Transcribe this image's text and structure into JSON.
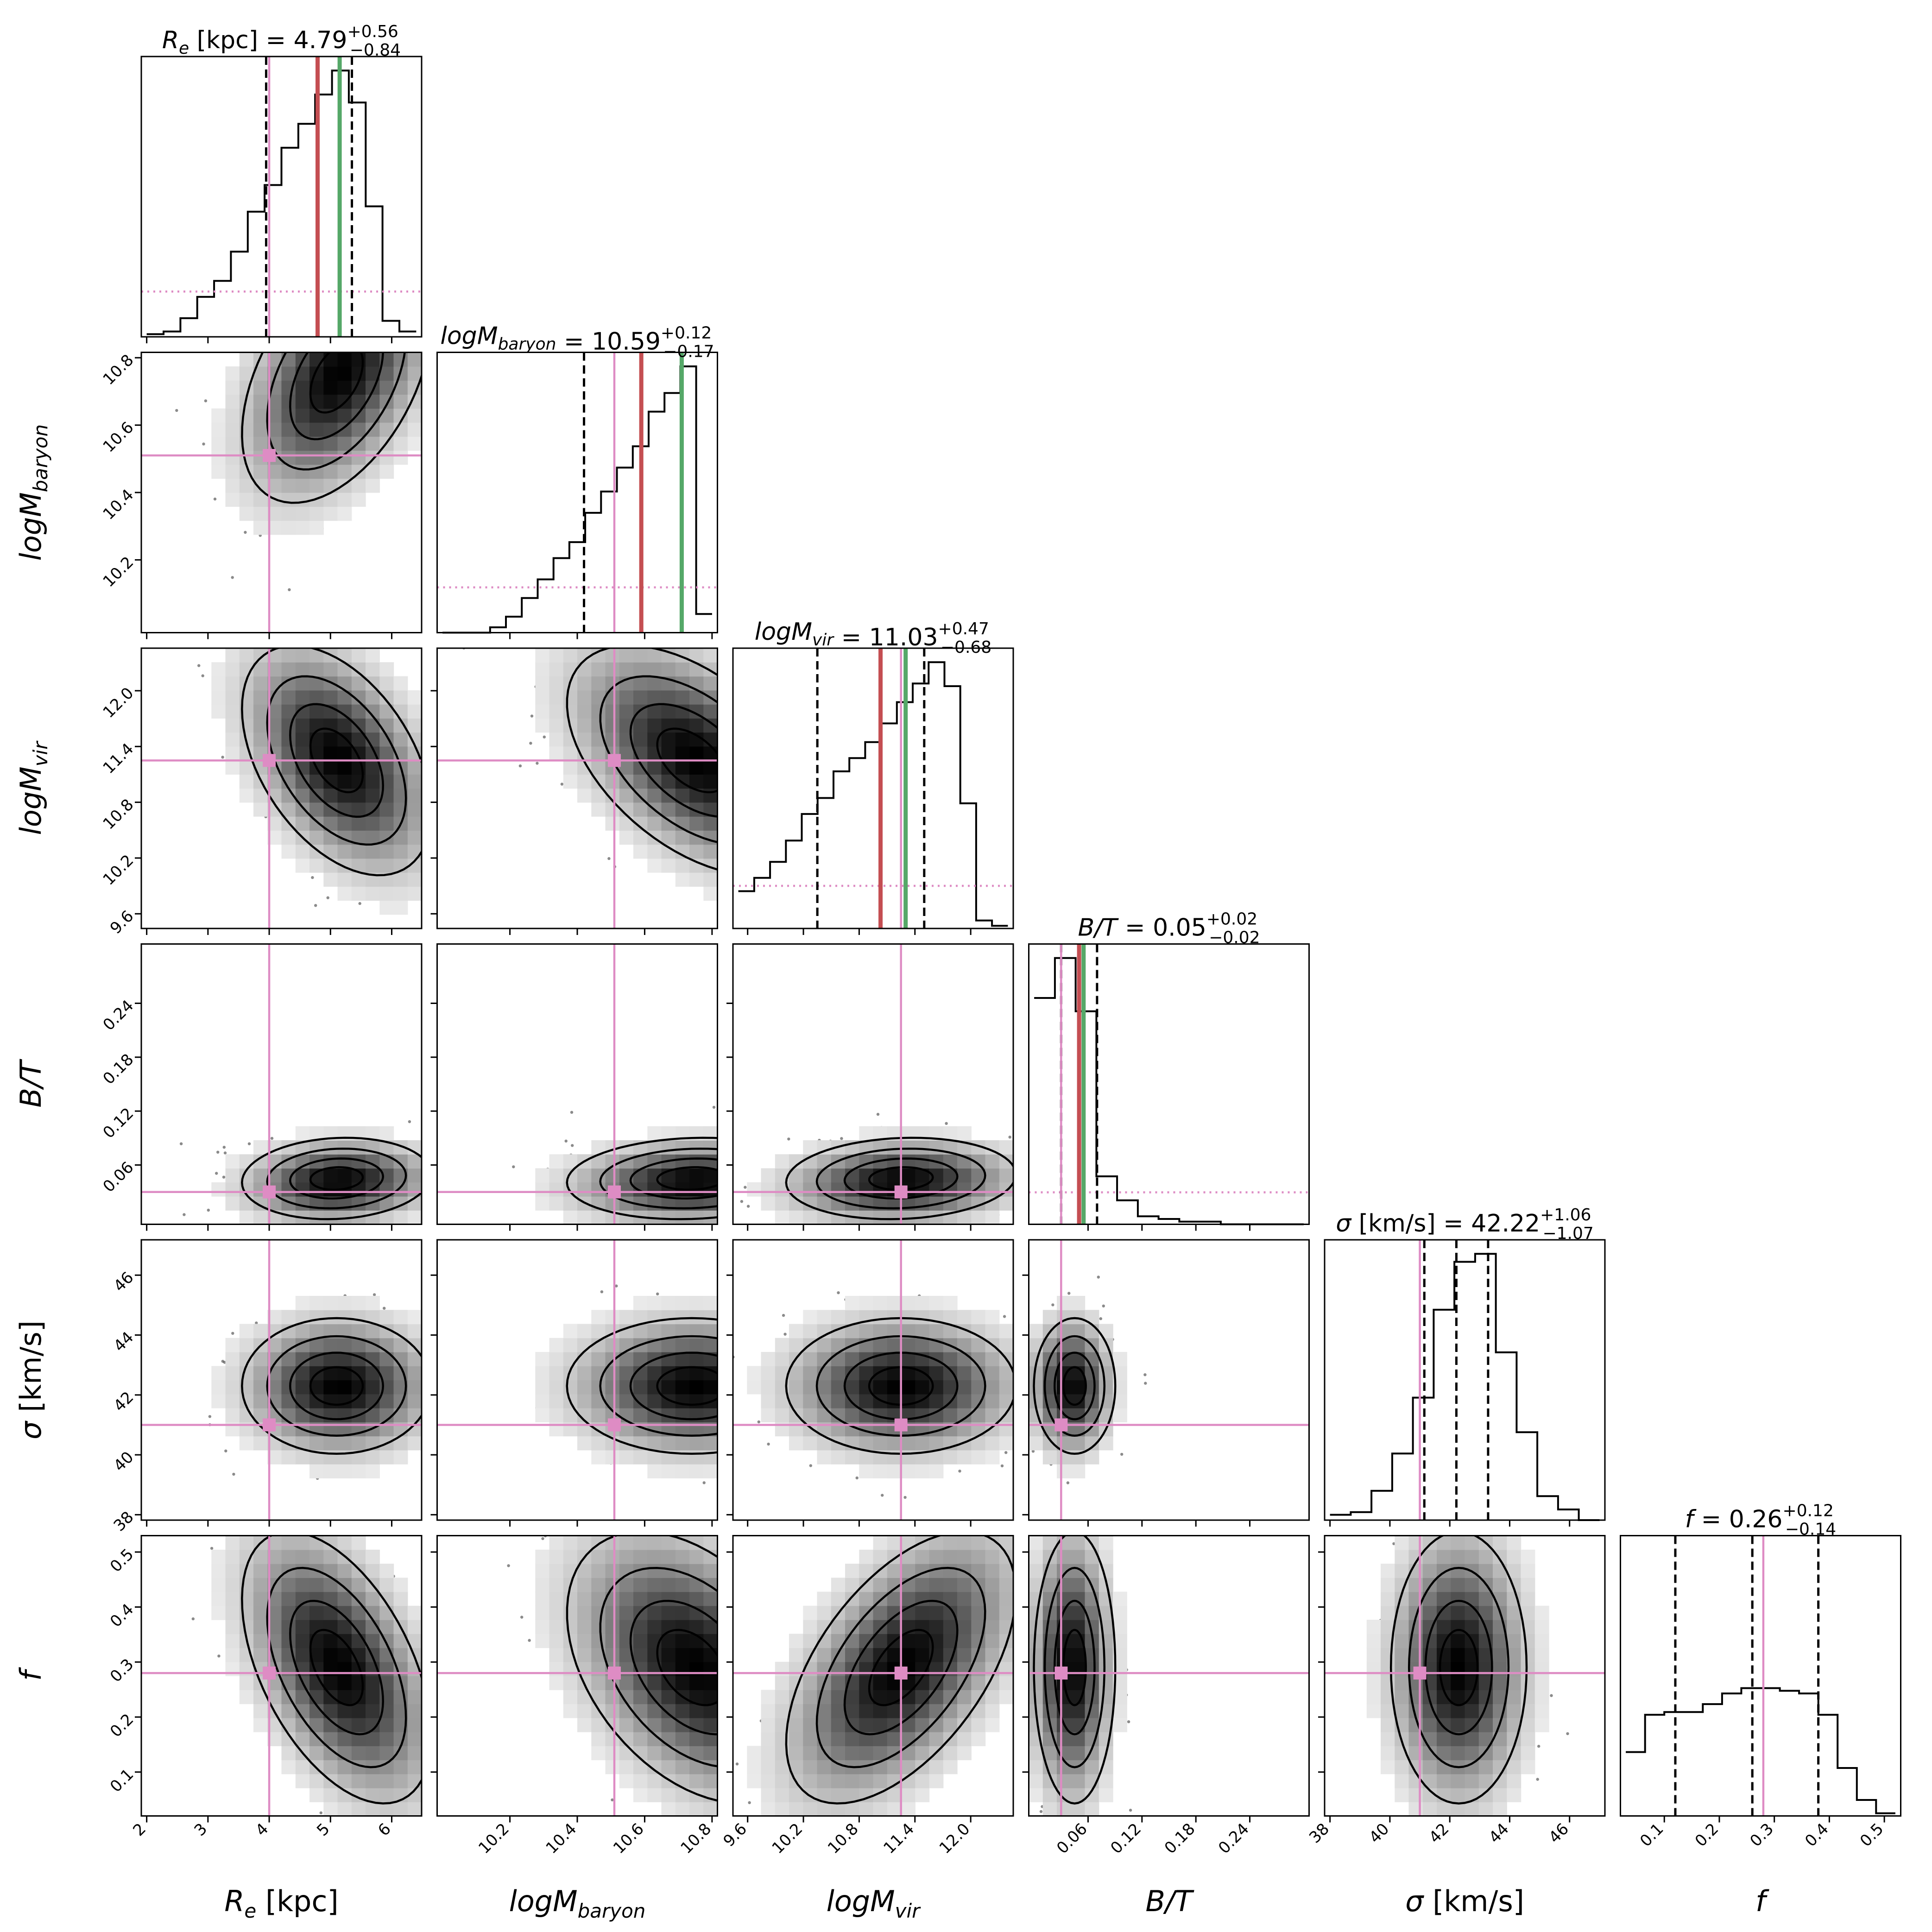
{
  "chart_data": {
    "type": "corner",
    "colors": {
      "truth": "#de8cc4",
      "median_marker": "#c44e52",
      "green_marker": "#55a868",
      "quantile_line": "#000000",
      "density_dark": "#000000",
      "density_light": "#ffffff",
      "contour": "#000000"
    },
    "parameters": [
      {
        "key": "Re",
        "axis_label": "R_e [kpc]",
        "label_base": "R",
        "label_sub": "e",
        "label_rest": " [kpc]",
        "title": "R_e [kpc] = 4.79 +0.56 −0.84",
        "title_value": "4.79",
        "title_plus": "+0.56",
        "title_minus": "−0.84",
        "median": 4.79,
        "q16": 3.95,
        "q84": 5.35,
        "truth": 4.0,
        "red_marker": 4.79,
        "green_marker": 5.15,
        "range": [
          2.0,
          6.4
        ],
        "ticks": [
          2,
          3,
          4,
          5,
          6
        ],
        "tick_labels": [
          "2",
          "3",
          "4",
          "5",
          "6"
        ],
        "mode": 5.1,
        "sigma": 0.75
      },
      {
        "key": "logMbaryon",
        "axis_label": "logM_baryon",
        "label_base": "logM",
        "label_sub": "baryon",
        "label_rest": "",
        "title": "logM_baryon = 10.59 +0.12 −0.17",
        "title_value": "10.59",
        "title_plus": "+0.12",
        "title_minus": "−0.17",
        "median": 10.59,
        "q16": 10.42,
        "q84": 10.71,
        "truth": 10.51,
        "red_marker": 10.59,
        "green_marker": 10.71,
        "range": [
          10.0,
          10.8
        ],
        "ticks": [
          10.2,
          10.4,
          10.6,
          10.8
        ],
        "tick_labels": [
          "10.2",
          "10.4",
          "10.6",
          "10.8"
        ],
        "mode": 10.74,
        "sigma": 0.18
      },
      {
        "key": "logMvir",
        "axis_label": "logM_vir",
        "label_base": "logM",
        "label_sub": "vir",
        "label_rest": "",
        "title": "logM_vir = 11.03 +0.47 −0.68",
        "title_value": "11.03",
        "title_plus": "+0.47",
        "title_minus": "−0.68",
        "median": 11.03,
        "q16": 10.35,
        "q84": 11.5,
        "truth": 11.25,
        "red_marker": 11.03,
        "green_marker": 11.3,
        "range": [
          9.5,
          12.4
        ],
        "ticks": [
          9.6,
          10.2,
          10.8,
          11.4,
          12.0
        ],
        "tick_labels": [
          "9.6",
          "10.2",
          "10.8",
          "11.4",
          "12.0"
        ],
        "mode": 11.25,
        "sigma": 0.6
      },
      {
        "key": "BT",
        "axis_label": "B/T",
        "label_base": "B/T",
        "label_sub": "",
        "label_rest": "",
        "title": "B/T = 0.05 +0.02 −0.02",
        "title_value": "0.05",
        "title_plus": "+0.02",
        "title_minus": "−0.02",
        "median": 0.05,
        "q16": 0.03,
        "q84": 0.07,
        "truth": 0.03,
        "red_marker": 0.05,
        "green_marker": 0.055,
        "range": [
          0.0,
          0.3
        ],
        "ticks": [
          0.06,
          0.12,
          0.18,
          0.24
        ],
        "tick_labels": [
          "0.06",
          "0.12",
          "0.18",
          "0.24"
        ],
        "mode": 0.045,
        "sigma": 0.022
      },
      {
        "key": "sigma",
        "axis_label": "σ [km/s]",
        "label_base": "σ",
        "label_sub": "",
        "label_rest": " [km/s]",
        "title": "σ [km/s] = 42.22 +1.06 −1.07",
        "title_value": "42.22",
        "title_plus": "+1.06",
        "title_minus": "−1.07",
        "median": 42.22,
        "q16": 41.15,
        "q84": 43.28,
        "truth": 41.0,
        "range": [
          38.0,
          47.0
        ],
        "ticks": [
          38,
          40,
          42,
          44,
          46
        ],
        "tick_labels": [
          "38",
          "40",
          "42",
          "44",
          "46"
        ],
        "mode": 42.3,
        "sigma": 1.1
      },
      {
        "key": "f",
        "axis_label": "f",
        "label_base": "f",
        "label_sub": "",
        "label_rest": "",
        "title": "f = 0.26 +0.12 −0.14",
        "title_value": "0.26",
        "title_plus": "+0.12",
        "title_minus": "−0.14",
        "median": 0.26,
        "q16": 0.12,
        "q84": 0.38,
        "truth": 0.28,
        "range": [
          0.03,
          0.52
        ],
        "ticks": [
          0.1,
          0.2,
          0.3,
          0.4,
          0.5
        ],
        "tick_labels": [
          "0.1",
          "0.2",
          "0.3",
          "0.4",
          "0.5"
        ],
        "mode": 0.29,
        "sigma": 0.12
      }
    ],
    "histograms": {
      "Re": [
        0.01,
        0.02,
        0.07,
        0.15,
        0.21,
        0.32,
        0.47,
        0.57,
        0.71,
        0.8,
        0.91,
        1.0,
        0.88,
        0.49,
        0.06,
        0.02
      ],
      "logMbaryon": [
        0.0,
        0.0,
        0.0,
        0.02,
        0.06,
        0.13,
        0.2,
        0.28,
        0.34,
        0.45,
        0.53,
        0.62,
        0.7,
        0.83,
        0.9,
        1.0,
        0.07
      ],
      "logMvir": [
        0.14,
        0.19,
        0.25,
        0.33,
        0.43,
        0.49,
        0.59,
        0.64,
        0.7,
        0.77,
        0.85,
        0.92,
        1.0,
        0.91,
        0.47,
        0.03,
        0.01
      ],
      "BT": [
        0.85,
        1.0,
        0.8,
        0.18,
        0.09,
        0.03,
        0.02,
        0.01,
        0.01,
        0.0,
        0.0,
        0.0,
        0.0
      ],
      "sigma": [
        0.02,
        0.03,
        0.11,
        0.25,
        0.46,
        0.79,
        0.97,
        1.0,
        0.63,
        0.33,
        0.09,
        0.04,
        0.0
      ],
      "f": [
        0.24,
        0.38,
        0.39,
        0.39,
        0.42,
        0.46,
        0.48,
        0.48,
        0.47,
        0.46,
        0.38,
        0.18,
        0.06,
        0.01
      ]
    },
    "hist_truth_level": {
      "Re": 0.17,
      "logMbaryon": 0.17,
      "logMvir": 0.16,
      "BT": 0.12,
      "f": 0.0
    },
    "correlations": {
      "logMbaryon_Re": 0.45,
      "logMvir_Re": -0.45,
      "logMvir_logMbaryon": -0.5,
      "BT_Re": 0.1,
      "BT_logMbaryon": 0.1,
      "BT_logMvir": 0.1,
      "sigma_Re": 0.0,
      "sigma_logMbaryon": 0.0,
      "sigma_logMvir": 0.0,
      "sigma_BT": 0.0,
      "f_Re": -0.5,
      "f_logMbaryon": -0.4,
      "f_logMvir": 0.55,
      "f_BT": 0.0,
      "f_sigma": 0.0
    },
    "contour_levels": [
      0.85,
      0.6,
      0.32,
      0.12
    ],
    "grid": false,
    "legend": "none"
  }
}
